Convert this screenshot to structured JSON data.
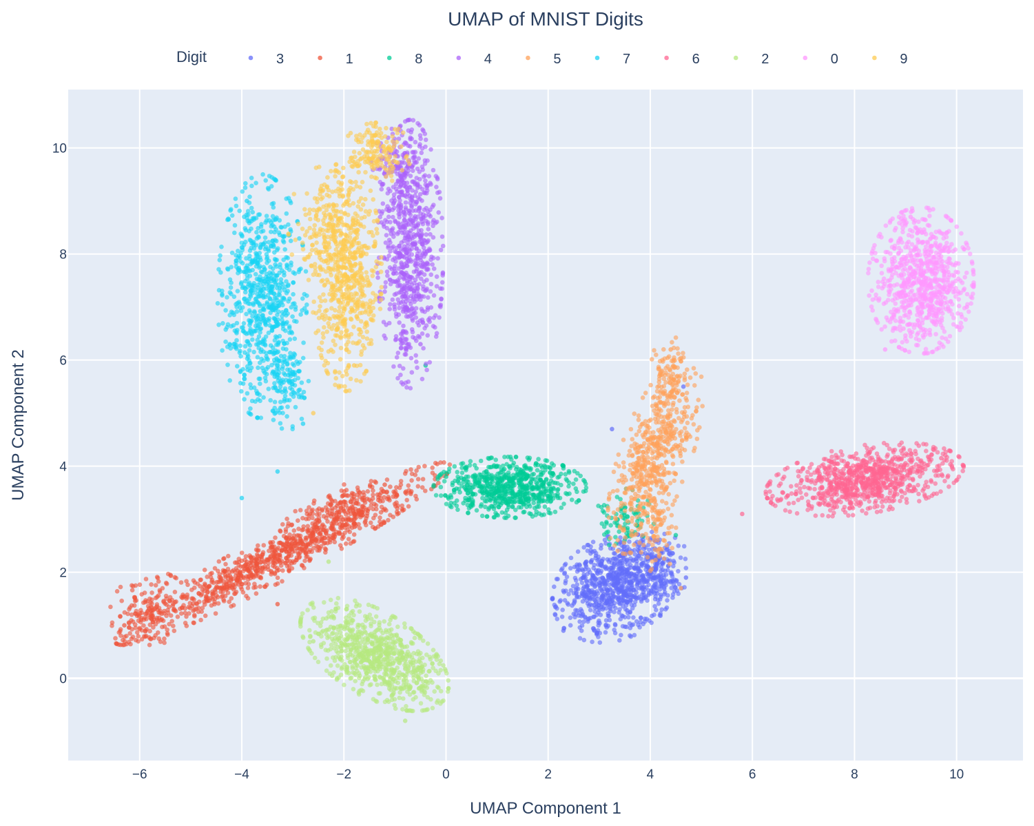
{
  "chart_data": {
    "type": "scatter",
    "title": "UMAP of MNIST Digits",
    "xlabel": "UMAP Component 1",
    "ylabel": "UMAP Component 2",
    "xlim": [
      -7.4,
      11.3
    ],
    "ylim": [
      -1.55,
      11.1
    ],
    "xticks": [
      -6,
      -4,
      -2,
      0,
      2,
      4,
      6,
      8,
      10
    ],
    "xtick_labels": [
      "−6",
      "−4",
      "−2",
      "0",
      "2",
      "4",
      "6",
      "8",
      "10"
    ],
    "yticks": [
      0,
      2,
      4,
      6,
      8,
      10
    ],
    "ytick_labels": [
      "0",
      "2",
      "4",
      "6",
      "8",
      "10"
    ],
    "grid": true,
    "legend": {
      "title": "Digit",
      "placement": "top",
      "orientation": "horizontal"
    },
    "series": [
      {
        "name": "3",
        "color": "#636efa",
        "clusters": [
          {
            "cx": 3.3,
            "cy": 1.7,
            "sx": 0.55,
            "sy": 0.42,
            "rot": 25,
            "n": 750
          },
          {
            "cx": 4.0,
            "cy": 2.1,
            "sx": 0.35,
            "sy": 0.3,
            "rot": 0,
            "n": 200
          }
        ],
        "sample_points": [
          [
            2.3,
            0.9
          ],
          [
            4.65,
            5.5
          ],
          [
            3.25,
            4.7
          ],
          [
            4.7,
            1.9
          ]
        ]
      },
      {
        "name": "1",
        "color": "#ef553b",
        "clusters": [
          {
            "cx": -3.2,
            "cy": 2.35,
            "sx": 1.6,
            "sy": 0.2,
            "rot": 27,
            "n": 900
          },
          {
            "cx": -5.8,
            "cy": 1.3,
            "sx": 0.35,
            "sy": 0.3,
            "rot": 25,
            "n": 150
          },
          {
            "cx": -2.2,
            "cy": 3.2,
            "sx": 0.5,
            "sy": 0.15,
            "rot": 25,
            "n": 120
          }
        ],
        "sample_points": [
          [
            -6.3,
            1.0
          ],
          [
            -1.2,
            3.65
          ],
          [
            -3.3,
            1.4
          ]
        ]
      },
      {
        "name": "8",
        "color": "#00cc96",
        "clusters": [
          {
            "cx": 1.25,
            "cy": 3.6,
            "sx": 0.65,
            "sy": 0.25,
            "rot": 0,
            "n": 700
          },
          {
            "cx": 3.5,
            "cy": 3.0,
            "sx": 0.25,
            "sy": 0.25,
            "rot": 0,
            "n": 80
          }
        ],
        "sample_points": [
          [
            0.0,
            3.8
          ],
          [
            2.3,
            4.0
          ],
          [
            4.5,
            2.7
          ],
          [
            -0.4,
            5.9
          ]
        ]
      },
      {
        "name": "4",
        "color": "#ab63fa",
        "clusters": [
          {
            "cx": -0.7,
            "cy": 8.0,
            "sx": 0.28,
            "sy": 1.1,
            "rot": 0,
            "n": 700
          },
          {
            "cx": -0.9,
            "cy": 9.6,
            "sx": 0.25,
            "sy": 0.35,
            "rot": 0,
            "n": 120
          }
        ],
        "sample_points": [
          [
            -0.8,
            10.1
          ],
          [
            -0.5,
            6.3
          ]
        ]
      },
      {
        "name": "5",
        "color": "#ffa15a",
        "clusters": [
          {
            "cx": 4.1,
            "cy": 4.2,
            "sx": 0.3,
            "sy": 0.85,
            "rot": -20,
            "n": 550
          },
          {
            "cx": 4.35,
            "cy": 5.7,
            "sx": 0.15,
            "sy": 0.35,
            "rot": 0,
            "n": 80
          },
          {
            "cx": 4.1,
            "cy": 2.7,
            "sx": 0.2,
            "sy": 0.3,
            "rot": 0,
            "n": 60
          }
        ],
        "sample_points": [
          [
            4.4,
            6.2
          ],
          [
            4.6,
            1.7
          ],
          [
            3.5,
            3.5
          ]
        ]
      },
      {
        "name": "7",
        "color": "#19d3f3",
        "clusters": [
          {
            "cx": -3.6,
            "cy": 7.2,
            "sx": 0.38,
            "sy": 1.0,
            "rot": 0,
            "n": 750
          },
          {
            "cx": -3.1,
            "cy": 5.6,
            "sx": 0.2,
            "sy": 0.4,
            "rot": 0,
            "n": 100
          }
        ],
        "sample_points": [
          [
            -3.9,
            9.0
          ],
          [
            -3.3,
            3.9
          ],
          [
            -4.0,
            3.4
          ],
          [
            -2.8,
            4.8
          ]
        ]
      },
      {
        "name": "6",
        "color": "#ff6692",
        "clusters": [
          {
            "cx": 8.2,
            "cy": 3.75,
            "sx": 0.85,
            "sy": 0.28,
            "rot": 8,
            "n": 850
          }
        ],
        "sample_points": [
          [
            9.7,
            4.15
          ],
          [
            6.6,
            3.5
          ],
          [
            5.8,
            3.1
          ]
        ]
      },
      {
        "name": "2",
        "color": "#b6e880",
        "clusters": [
          {
            "cx": -1.4,
            "cy": 0.45,
            "sx": 0.7,
            "sy": 0.35,
            "rot": -30,
            "n": 800
          }
        ],
        "sample_points": [
          [
            -2.3,
            2.2
          ],
          [
            -0.8,
            -0.8
          ],
          [
            -2.6,
            0.7
          ]
        ]
      },
      {
        "name": "0",
        "color": "#ff97ff",
        "clusters": [
          {
            "cx": 9.3,
            "cy": 7.5,
            "sx": 0.45,
            "sy": 0.6,
            "rot": 0,
            "n": 800
          }
        ],
        "sample_points": [
          [
            8.6,
            6.2
          ],
          [
            10.2,
            7.0
          ],
          [
            9.1,
            8.7
          ]
        ]
      },
      {
        "name": "9",
        "color": "#fecb52",
        "clusters": [
          {
            "cx": -1.95,
            "cy": 7.6,
            "sx": 0.3,
            "sy": 0.95,
            "rot": 0,
            "n": 650
          },
          {
            "cx": -1.35,
            "cy": 9.9,
            "sx": 0.3,
            "sy": 0.25,
            "rot": 0,
            "n": 150
          },
          {
            "cx": -2.4,
            "cy": 8.5,
            "sx": 0.3,
            "sy": 0.5,
            "rot": 0,
            "n": 120
          }
        ],
        "sample_points": [
          [
            -1.0,
            10.35
          ],
          [
            -1.8,
            5.9
          ],
          [
            -2.6,
            5.0
          ]
        ]
      }
    ]
  }
}
